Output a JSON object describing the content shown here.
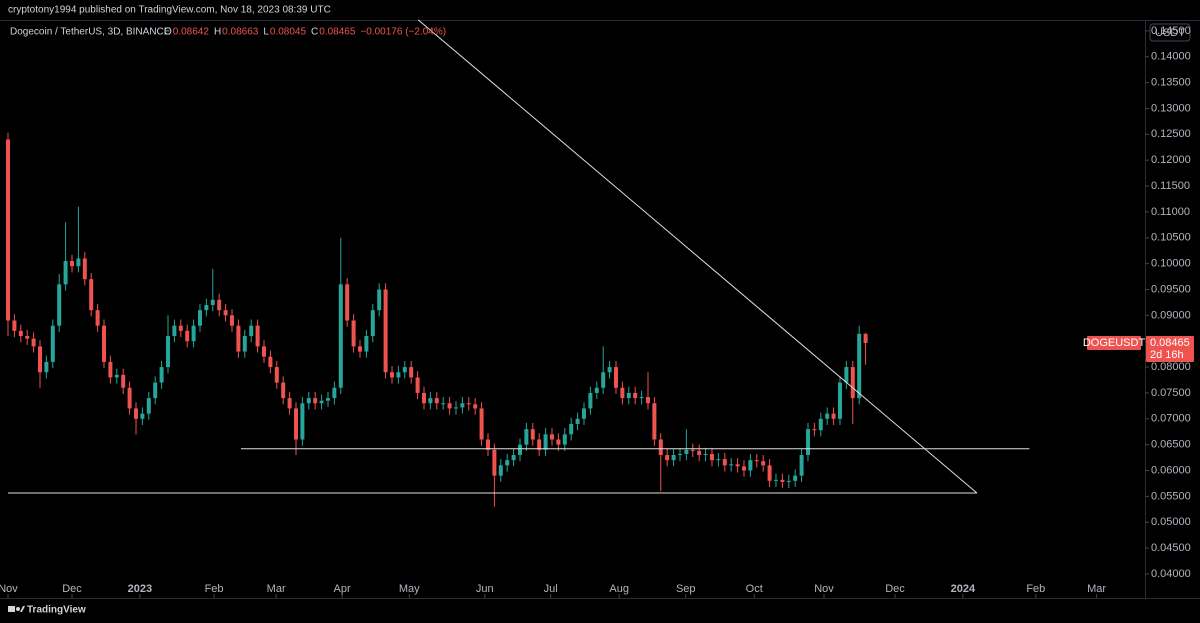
{
  "header": "cryptotony1994 published on TradingView.com, Nov 18, 2023 08:39 UTC",
  "footer": "TradingView",
  "chart_data": {
    "type": "candlestick",
    "title": "Dogecoin / TetherUS, 3D, BINANCE",
    "ohlc_legend": [
      {
        "label": "O",
        "value": "0.08642"
      },
      {
        "label": "H",
        "value": "0.08663"
      },
      {
        "label": "L",
        "value": "0.08045"
      },
      {
        "label": "C",
        "value": "0.08465"
      }
    ],
    "change": "−0.00176 (−2.04%)",
    "currency": "USDT",
    "price_tag": {
      "symbol": "DOGEUSDT",
      "price": "0.08465",
      "countdown": "2d 16h"
    },
    "up_color": "#26a69a",
    "down_color": "#ef5350",
    "xlim": [
      -1.25,
      177.66
    ],
    "xticks": [
      {
        "value": 0,
        "label": "Nov"
      },
      {
        "value": 10,
        "label": "Dec"
      },
      {
        "value": 20.6,
        "label": "2023"
      },
      {
        "value": 32.2,
        "label": "Feb"
      },
      {
        "value": 41.9,
        "label": "Mar"
      },
      {
        "value": 52.2,
        "label": "Apr"
      },
      {
        "value": 62.7,
        "label": "May"
      },
      {
        "value": 74.5,
        "label": "Jun"
      },
      {
        "value": 84.8,
        "label": "Jul"
      },
      {
        "value": 95.5,
        "label": "Aug"
      },
      {
        "value": 105.9,
        "label": "Sep"
      },
      {
        "value": 116.6,
        "label": "Oct"
      },
      {
        "value": 127.5,
        "label": "Nov"
      },
      {
        "value": 138.6,
        "label": "Dec"
      },
      {
        "value": 149.2,
        "label": "2024"
      },
      {
        "value": 160.6,
        "label": "Feb"
      },
      {
        "value": 170.1,
        "label": "Mar"
      }
    ],
    "ylim": [
      0.0369,
      0.1471
    ],
    "yticks": [
      {
        "value": 0.04,
        "label": "0.04000"
      },
      {
        "value": 0.045,
        "label": "0.04500"
      },
      {
        "value": 0.05,
        "label": "0.05000"
      },
      {
        "value": 0.055,
        "label": "0.05500"
      },
      {
        "value": 0.06,
        "label": "0.06000"
      },
      {
        "value": 0.065,
        "label": "0.06500"
      },
      {
        "value": 0.07,
        "label": "0.07000"
      },
      {
        "value": 0.075,
        "label": "0.07500"
      },
      {
        "value": 0.08,
        "label": "0.08000"
      },
      {
        "value": 0.085,
        "label": "0.08500"
      },
      {
        "value": 0.09,
        "label": "0.09000"
      },
      {
        "value": 0.095,
        "label": "0.09500"
      },
      {
        "value": 0.1,
        "label": "0.10000"
      },
      {
        "value": 0.105,
        "label": "0.10500"
      },
      {
        "value": 0.11,
        "label": "0.11000"
      },
      {
        "value": 0.115,
        "label": "0.11500"
      },
      {
        "value": 0.12,
        "label": "0.12000"
      },
      {
        "value": 0.125,
        "label": "0.12500"
      },
      {
        "value": 0.13,
        "label": "0.13000"
      },
      {
        "value": 0.135,
        "label": "0.13500"
      },
      {
        "value": 0.14,
        "label": "0.14000"
      },
      {
        "value": 0.145,
        "label": "0.14500"
      }
    ],
    "grid": false,
    "open": [
      0.124,
      0.089,
      0.087,
      0.086,
      0.0855,
      0.084,
      0.079,
      0.081,
      0.088,
      0.096,
      0.1005,
      0.0995,
      0.101,
      0.097,
      0.091,
      0.088,
      0.081,
      0.078,
      0.0785,
      0.076,
      0.072,
      0.07,
      0.071,
      0.074,
      0.077,
      0.08,
      0.086,
      0.088,
      0.087,
      0.085,
      0.088,
      0.091,
      0.092,
      0.093,
      0.091,
      0.09,
      0.088,
      0.083,
      0.086,
      0.088,
      0.084,
      0.082,
      0.08,
      0.077,
      0.074,
      0.072,
      0.066,
      0.073,
      0.074,
      0.073,
      0.0735,
      0.074,
      0.076,
      0.096,
      0.089,
      0.084,
      0.083,
      0.086,
      0.091,
      0.095,
      0.079,
      0.078,
      0.079,
      0.08,
      0.078,
      0.075,
      0.073,
      0.074,
      0.073,
      0.073,
      0.072,
      0.0722,
      0.073,
      0.0728,
      0.072,
      0.066,
      0.064,
      0.059,
      0.061,
      0.062,
      0.063,
      0.065,
      0.068,
      0.066,
      0.064,
      0.067,
      0.066,
      0.065,
      0.067,
      0.069,
      0.07,
      0.072,
      0.075,
      0.076,
      0.079,
      0.08,
      0.076,
      0.074,
      0.075,
      0.074,
      0.0742,
      0.073,
      0.066,
      0.063,
      0.062,
      0.063,
      0.0632,
      0.064,
      0.0638,
      0.063,
      0.0632,
      0.062,
      0.0622,
      0.061,
      0.0612,
      0.0608,
      0.06,
      0.062,
      0.0618,
      0.061,
      0.058,
      0.0582,
      0.0578,
      0.058,
      0.059,
      0.063,
      0.068,
      0.0678,
      0.07,
      0.071,
      0.07,
      0.077,
      0.08,
      0.074,
      0.08642
    ],
    "high": [
      0.1253,
      0.0902,
      0.0882,
      0.0872,
      0.0867,
      0.0852,
      0.0822,
      0.0892,
      0.098,
      0.108,
      0.1017,
      0.111,
      0.1022,
      0.0982,
      0.0922,
      0.0892,
      0.0822,
      0.0797,
      0.0797,
      0.0772,
      0.0732,
      0.0722,
      0.0752,
      0.0782,
      0.0812,
      0.09,
      0.0892,
      0.0892,
      0.0882,
      0.0892,
      0.0922,
      0.0932,
      0.099,
      0.0942,
      0.0922,
      0.0912,
      0.0892,
      0.0872,
      0.0892,
      0.0892,
      0.0852,
      0.0832,
      0.0812,
      0.0782,
      0.0752,
      0.0732,
      0.0742,
      0.0752,
      0.0752,
      0.0747,
      0.0752,
      0.0772,
      0.105,
      0.0972,
      0.0902,
      0.0852,
      0.0872,
      0.0922,
      0.0962,
      0.0962,
      0.0802,
      0.0802,
      0.0812,
      0.0812,
      0.0792,
      0.0762,
      0.0752,
      0.0752,
      0.0742,
      0.0742,
      0.0734,
      0.0742,
      0.0742,
      0.074,
      0.0732,
      0.0672,
      0.0652,
      0.0622,
      0.0632,
      0.0642,
      0.0662,
      0.0692,
      0.0692,
      0.0672,
      0.0682,
      0.0682,
      0.0672,
      0.0682,
      0.0702,
      0.0712,
      0.0732,
      0.0762,
      0.0772,
      0.084,
      0.0812,
      0.0812,
      0.0772,
      0.0762,
      0.0762,
      0.0754,
      0.079,
      0.0742,
      0.0672,
      0.0642,
      0.0642,
      0.0644,
      0.068,
      0.0652,
      0.065,
      0.0644,
      0.0644,
      0.0634,
      0.0634,
      0.0624,
      0.0624,
      0.062,
      0.0632,
      0.0632,
      0.063,
      0.0622,
      0.0594,
      0.0594,
      0.0592,
      0.0602,
      0.0642,
      0.0692,
      0.0692,
      0.0712,
      0.0722,
      0.0722,
      0.0782,
      0.0812,
      0.0812,
      0.088,
      0.08663
    ],
    "low": [
      0.086,
      0.0858,
      0.0848,
      0.0843,
      0.0828,
      0.076,
      0.0778,
      0.0798,
      0.0868,
      0.0948,
      0.0983,
      0.0983,
      0.0958,
      0.0898,
      0.0868,
      0.0798,
      0.0768,
      0.0768,
      0.0748,
      0.0708,
      0.067,
      0.0688,
      0.0698,
      0.0728,
      0.0758,
      0.0788,
      0.0848,
      0.0858,
      0.0838,
      0.0838,
      0.0868,
      0.0898,
      0.0908,
      0.0898,
      0.0888,
      0.0868,
      0.0818,
      0.0818,
      0.0848,
      0.0828,
      0.0808,
      0.0788,
      0.0758,
      0.0728,
      0.0708,
      0.063,
      0.0648,
      0.0718,
      0.0718,
      0.0718,
      0.0723,
      0.0728,
      0.0748,
      0.0878,
      0.0828,
      0.0818,
      0.0818,
      0.0848,
      0.0898,
      0.0778,
      0.0768,
      0.0768,
      0.0778,
      0.0768,
      0.0738,
      0.0718,
      0.0718,
      0.0718,
      0.0718,
      0.0708,
      0.0708,
      0.071,
      0.0716,
      0.0708,
      0.0648,
      0.0628,
      0.053,
      0.0578,
      0.0598,
      0.0608,
      0.0618,
      0.0638,
      0.0648,
      0.0628,
      0.0628,
      0.0648,
      0.0638,
      0.0638,
      0.0658,
      0.0678,
      0.0688,
      0.0708,
      0.0738,
      0.0748,
      0.0778,
      0.0748,
      0.0728,
      0.0728,
      0.0728,
      0.0728,
      0.0718,
      0.0648,
      0.056,
      0.0608,
      0.0608,
      0.0618,
      0.062,
      0.0626,
      0.0618,
      0.0618,
      0.0608,
      0.0608,
      0.0598,
      0.0598,
      0.0596,
      0.0588,
      0.0588,
      0.0606,
      0.0598,
      0.0568,
      0.0568,
      0.0566,
      0.0566,
      0.0568,
      0.0578,
      0.0618,
      0.0666,
      0.0666,
      0.0688,
      0.0688,
      0.0688,
      0.0758,
      0.069,
      0.0728,
      0.08045
    ],
    "close": [
      0.089,
      0.087,
      0.086,
      0.0855,
      0.084,
      0.079,
      0.081,
      0.088,
      0.096,
      0.1005,
      0.0995,
      0.101,
      0.097,
      0.091,
      0.088,
      0.081,
      0.078,
      0.0785,
      0.076,
      0.072,
      0.07,
      0.071,
      0.074,
      0.077,
      0.08,
      0.086,
      0.088,
      0.087,
      0.085,
      0.088,
      0.091,
      0.092,
      0.093,
      0.091,
      0.09,
      0.088,
      0.083,
      0.086,
      0.088,
      0.084,
      0.082,
      0.08,
      0.077,
      0.074,
      0.072,
      0.066,
      0.073,
      0.074,
      0.073,
      0.0735,
      0.074,
      0.076,
      0.096,
      0.089,
      0.084,
      0.083,
      0.086,
      0.091,
      0.095,
      0.079,
      0.078,
      0.079,
      0.08,
      0.078,
      0.075,
      0.073,
      0.074,
      0.073,
      0.073,
      0.072,
      0.0722,
      0.073,
      0.0728,
      0.072,
      0.066,
      0.064,
      0.059,
      0.061,
      0.062,
      0.063,
      0.065,
      0.068,
      0.066,
      0.064,
      0.067,
      0.066,
      0.065,
      0.067,
      0.069,
      0.07,
      0.072,
      0.075,
      0.076,
      0.079,
      0.08,
      0.076,
      0.074,
      0.075,
      0.074,
      0.0742,
      0.073,
      0.066,
      0.063,
      0.062,
      0.063,
      0.0632,
      0.064,
      0.0638,
      0.063,
      0.0632,
      0.062,
      0.0622,
      0.061,
      0.0612,
      0.0608,
      0.06,
      0.062,
      0.0618,
      0.061,
      0.058,
      0.0582,
      0.0578,
      0.058,
      0.059,
      0.063,
      0.068,
      0.0678,
      0.07,
      0.071,
      0.07,
      0.077,
      0.08,
      0.074,
      0.08642,
      0.08465
    ],
    "trendlines": [
      {
        "x": [
          64.1,
          151.4
        ],
        "y": [
          0.14713,
          0.05566
        ]
      },
      {
        "x": [
          36.4,
          159.6
        ],
        "y": [
          0.0642,
          0.0642
        ]
      },
      {
        "x": [
          0,
          151.4
        ],
        "y": [
          0.05566,
          0.05566
        ]
      }
    ]
  }
}
